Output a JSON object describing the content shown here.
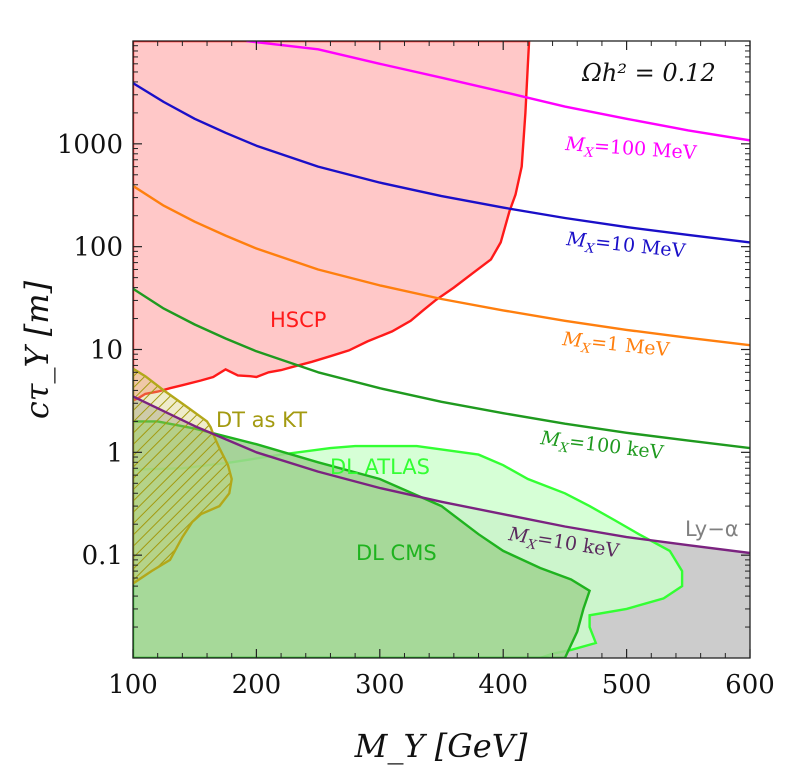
{
  "chart_data": {
    "type": "line",
    "xlabel": "M_Y [GeV]",
    "ylabel": "cτ_Y [m]",
    "xlim": [
      100,
      600
    ],
    "ylim": [
      0.01,
      10000
    ],
    "yscale": "log",
    "x_ticks": [
      100,
      200,
      300,
      400,
      500,
      600
    ],
    "x_tick_labels": [
      "100",
      "200",
      "300",
      "400",
      "500",
      "600"
    ],
    "y_ticks": [
      0.1,
      1,
      10,
      100,
      1000
    ],
    "y_tick_labels": [
      "0.1",
      "1",
      "10",
      "100",
      "1000"
    ],
    "annotation": "Ωh² = 0.12",
    "series": [
      {
        "name": "M_X=100 MeV",
        "label": "=100 MeV",
        "color": "#ff00ff",
        "x": [
          192,
          250,
          300,
          350,
          400,
          450,
          500,
          550,
          600
        ],
        "y": [
          10000,
          8300,
          6000,
          4400,
          3200,
          2300,
          1750,
          1350,
          1080
        ]
      },
      {
        "name": "M_X=10 MeV",
        "label": "=10 MeV",
        "color": "#1a0fc8",
        "x": [
          100,
          125,
          150,
          175,
          200,
          250,
          300,
          350,
          400,
          450,
          500,
          550,
          600
        ],
        "y": [
          3900,
          2550,
          1750,
          1280,
          960,
          600,
          420,
          310,
          240,
          190,
          155,
          130,
          110
        ]
      },
      {
        "name": "M_X=1 MeV",
        "label": "=1 MeV",
        "color": "#ff7f0e",
        "x": [
          100,
          125,
          150,
          175,
          200,
          250,
          300,
          350,
          400,
          450,
          500,
          550,
          600
        ],
        "y": [
          390,
          250,
          175,
          128,
          96,
          60,
          42,
          31,
          24,
          19,
          15.5,
          13,
          11
        ]
      },
      {
        "name": "M_X=100 keV",
        "label": "=100 keV",
        "color": "#1f9a1f",
        "x": [
          100,
          125,
          150,
          175,
          200,
          250,
          300,
          350,
          400,
          450,
          500,
          550,
          600
        ],
        "y": [
          39,
          25,
          17.5,
          12.8,
          9.6,
          6.0,
          4.2,
          3.1,
          2.4,
          1.9,
          1.55,
          1.3,
          1.1
        ]
      },
      {
        "name": "M_X=10 keV",
        "label": "=10 keV",
        "color": "#7b2380",
        "x": [
          100,
          150,
          200,
          250,
          300,
          350,
          400,
          450,
          500,
          550,
          600
        ],
        "y": [
          3.5,
          1.8,
          1.0,
          0.65,
          0.45,
          0.33,
          0.25,
          0.19,
          0.15,
          0.125,
          0.105
        ]
      }
    ],
    "regions": [
      {
        "name": "HSCP",
        "label": "HSCP",
        "color": "#ff1a1a",
        "fill": "#ffc8c8",
        "x": [
          100,
          100,
          105,
          110,
          120,
          130,
          140,
          155,
          165,
          175,
          185,
          195,
          200,
          210,
          220,
          230,
          245,
          260,
          275,
          290,
          310,
          325,
          335,
          345,
          360,
          375,
          390,
          398,
          405,
          410,
          415,
          418,
          420,
          421,
          100
        ],
        "y": [
          10000,
          3.2,
          3.4,
          3.7,
          3.9,
          4.2,
          4.5,
          5.0,
          5.4,
          6.4,
          5.6,
          5.5,
          5.4,
          6.0,
          6.3,
          6.8,
          7.6,
          8.6,
          9.8,
          12,
          15,
          19,
          24,
          30,
          40,
          55,
          75,
          110,
          220,
          320,
          600,
          2000,
          6000,
          10000,
          10000
        ]
      },
      {
        "name": "Ly-α",
        "label": "Ly−α",
        "color": "#7b2380",
        "fill": "#cccccc",
        "x": [
          100,
          150,
          200,
          250,
          300,
          350,
          400,
          450,
          500,
          550,
          600,
          600,
          100
        ],
        "y": [
          3.5,
          1.8,
          1.0,
          0.65,
          0.45,
          0.33,
          0.25,
          0.19,
          0.15,
          0.125,
          0.105,
          0.01,
          0.01
        ]
      },
      {
        "name": "DL ATLAS",
        "label": "DL ATLAS",
        "color": "#33ff33",
        "fill": "#ccffcc",
        "x": [
          100,
          140,
          180,
          220,
          260,
          280,
          330,
          380,
          400,
          420,
          450,
          470,
          490,
          510,
          535,
          545,
          545,
          530,
          500,
          470,
          470,
          475,
          455,
          440,
          430,
          100,
          100
        ],
        "y": [
          0.68,
          0.7,
          0.8,
          0.95,
          1.1,
          1.15,
          1.15,
          0.95,
          0.75,
          0.55,
          0.4,
          0.3,
          0.22,
          0.16,
          0.11,
          0.07,
          0.05,
          0.038,
          0.03,
          0.026,
          0.02,
          0.014,
          0.012,
          0.011,
          0.01,
          0.01,
          0.68
        ]
      },
      {
        "name": "DL CMS",
        "label": "DL CMS",
        "color": "#1fb31f",
        "fill": "#9fd38f",
        "x": [
          100,
          120,
          150,
          200,
          250,
          300,
          350,
          380,
          400,
          430,
          455,
          470,
          465,
          460,
          450,
          100,
          100
        ],
        "y": [
          2.0,
          2.0,
          1.7,
          1.2,
          0.8,
          0.55,
          0.3,
          0.16,
          0.11,
          0.075,
          0.058,
          0.045,
          0.03,
          0.018,
          0.01,
          0.01,
          2.0
        ]
      },
      {
        "name": "DT as KT",
        "label": "DT as KT",
        "color": "#b3a81a",
        "fill": "#d1c96a",
        "x": [
          100,
          110,
          125,
          145,
          160,
          163,
          165,
          170,
          177,
          180,
          178,
          170,
          155,
          148,
          140,
          130,
          115,
          100,
          100
        ],
        "y": [
          6.5,
          5.5,
          4.0,
          2.7,
          2.0,
          1.75,
          1.5,
          1.1,
          0.75,
          0.55,
          0.4,
          0.3,
          0.25,
          0.21,
          0.15,
          0.09,
          0.07,
          0.053,
          6.5
        ]
      }
    ]
  }
}
